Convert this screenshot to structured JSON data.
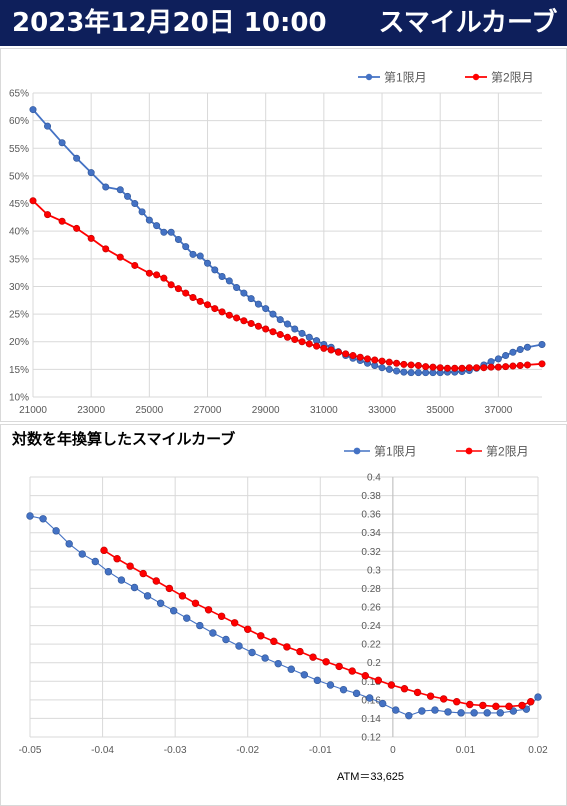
{
  "header": {
    "title": "2023年12月20日 10:00　　スマイルカーブ"
  },
  "chart_data": [
    {
      "type": "line",
      "title": "",
      "xlabel": "",
      "ylabel": "",
      "xlim": [
        21000,
        38500
      ],
      "ylim": [
        10,
        65
      ],
      "x_ticks": [
        "21000",
        "23000",
        "25000",
        "27000",
        "29000",
        "31000",
        "33000",
        "35000",
        "37000"
      ],
      "y_ticks": [
        "10%",
        "15%",
        "20%",
        "25%",
        "30%",
        "35%",
        "40%",
        "45%",
        "50%",
        "55%",
        "60%",
        "65%"
      ],
      "grid": true,
      "legend": "top-right",
      "series": [
        {
          "name": "第1限月",
          "color": "#4472c4",
          "x": [
            21000,
            21500,
            22000,
            22500,
            23000,
            23500,
            24000,
            24250,
            24500,
            24750,
            25000,
            25250,
            25500,
            25750,
            26000,
            26250,
            26500,
            26750,
            27000,
            27250,
            27500,
            27750,
            28000,
            28250,
            28500,
            28750,
            29000,
            29250,
            29500,
            29750,
            30000,
            30250,
            30500,
            30750,
            31000,
            31250,
            31500,
            31750,
            32000,
            32250,
            32500,
            32750,
            33000,
            33250,
            33500,
            33750,
            34000,
            34250,
            34500,
            34750,
            35000,
            35250,
            35500,
            35750,
            36000,
            36250,
            36500,
            36750,
            37000,
            37250,
            37500,
            37750,
            38000,
            38500
          ],
          "y": [
            62.0,
            59.0,
            56.0,
            53.2,
            50.6,
            48.0,
            47.5,
            46.3,
            45.0,
            43.5,
            42.0,
            41.0,
            39.8,
            39.8,
            38.5,
            37.2,
            35.8,
            35.5,
            34.2,
            33.0,
            31.8,
            31.0,
            29.8,
            28.8,
            27.8,
            26.8,
            26.0,
            25.0,
            24.0,
            23.2,
            22.3,
            21.5,
            20.8,
            20.2,
            19.5,
            19.0,
            18.2,
            17.5,
            17.0,
            16.6,
            16.1,
            15.7,
            15.3,
            15.0,
            14.7,
            14.5,
            14.4,
            14.4,
            14.4,
            14.4,
            14.4,
            14.5,
            14.5,
            14.6,
            14.8,
            15.2,
            15.8,
            16.4,
            16.9,
            17.5,
            18.1,
            18.6,
            19.0,
            19.5
          ]
        },
        {
          "name": "第2限月",
          "color": "#ff0000",
          "x": [
            21000,
            21500,
            22000,
            22500,
            23000,
            23500,
            24000,
            24500,
            25000,
            25250,
            25500,
            25750,
            26000,
            26250,
            26500,
            26750,
            27000,
            27250,
            27500,
            27750,
            28000,
            28250,
            28500,
            28750,
            29000,
            29250,
            29500,
            29750,
            30000,
            30250,
            30500,
            30750,
            31000,
            31250,
            31500,
            31750,
            32000,
            32250,
            32500,
            32750,
            33000,
            33250,
            33500,
            33750,
            34000,
            34250,
            34500,
            34750,
            35000,
            35250,
            35500,
            35750,
            36000,
            36250,
            36500,
            36750,
            37000,
            37250,
            37500,
            37750,
            38000,
            38500
          ],
          "y": [
            45.5,
            43.0,
            41.8,
            40.5,
            38.7,
            36.8,
            35.3,
            33.8,
            32.4,
            32.1,
            31.5,
            30.3,
            29.6,
            28.8,
            28.0,
            27.3,
            26.7,
            26.0,
            25.4,
            24.8,
            24.3,
            23.8,
            23.3,
            22.8,
            22.3,
            21.8,
            21.3,
            20.8,
            20.4,
            20.0,
            19.6,
            19.2,
            18.8,
            18.5,
            18.1,
            17.8,
            17.5,
            17.2,
            16.9,
            16.7,
            16.5,
            16.3,
            16.1,
            15.9,
            15.8,
            15.7,
            15.5,
            15.4,
            15.3,
            15.2,
            15.2,
            15.2,
            15.3,
            15.3,
            15.3,
            15.4,
            15.4,
            15.5,
            15.6,
            15.7,
            15.8,
            16.0
          ]
        }
      ]
    },
    {
      "type": "line",
      "title": "対数を年換算したスマイルカーブ",
      "xlabel": "",
      "ylabel": "",
      "xlim": [
        -0.05,
        0.02
      ],
      "ylim": [
        0.12,
        0.4
      ],
      "x_ticks": [
        "-0.05",
        "-0.04",
        "-0.03",
        "-0.02",
        "-0.01",
        "0",
        "0.01",
        "0.02"
      ],
      "y_ticks": [
        "0.12",
        "0.14",
        "0.16",
        "0.18",
        "0.2",
        "0.22",
        "0.24",
        "0.26",
        "0.28",
        "0.3",
        "0.32",
        "0.34",
        "0.36",
        "0.38",
        "0.4"
      ],
      "grid": true,
      "legend": "top-right",
      "annotation": "ATM＝33,625",
      "series": [
        {
          "name": "第1限月",
          "color": "#4472c4",
          "x": [
            -0.05,
            -0.0482,
            -0.0464,
            -0.0446,
            -0.0428,
            -0.041,
            -0.0392,
            -0.0374,
            -0.0356,
            -0.0338,
            -0.032,
            -0.0302,
            -0.0284,
            -0.0266,
            -0.0248,
            -0.023,
            -0.0212,
            -0.0194,
            -0.0176,
            -0.0158,
            -0.014,
            -0.0122,
            -0.0104,
            -0.0086,
            -0.0068,
            -0.005,
            -0.0032,
            -0.0014,
            0.0004,
            0.0022,
            0.004,
            0.0058,
            0.0076,
            0.0094,
            0.0112,
            0.013,
            0.0148,
            0.0166,
            0.0184,
            0.02
          ],
          "y": [
            0.358,
            0.355,
            0.342,
            0.328,
            0.317,
            0.309,
            0.298,
            0.289,
            0.281,
            0.272,
            0.264,
            0.256,
            0.248,
            0.24,
            0.232,
            0.225,
            0.218,
            0.211,
            0.205,
            0.199,
            0.193,
            0.187,
            0.181,
            0.176,
            0.171,
            0.167,
            0.162,
            0.156,
            0.149,
            0.143,
            0.148,
            0.149,
            0.147,
            0.146,
            0.146,
            0.146,
            0.146,
            0.148,
            0.15,
            0.163
          ]
        },
        {
          "name": "第2限月",
          "color": "#ff0000",
          "x": [
            -0.0398,
            -0.038,
            -0.0362,
            -0.0344,
            -0.0326,
            -0.0308,
            -0.029,
            -0.0272,
            -0.0254,
            -0.0236,
            -0.0218,
            -0.02,
            -0.0182,
            -0.0164,
            -0.0146,
            -0.0128,
            -0.011,
            -0.0092,
            -0.0074,
            -0.0056,
            -0.0038,
            -0.002,
            -0.0002,
            0.0016,
            0.0034,
            0.0052,
            0.007,
            0.0088,
            0.0106,
            0.0124,
            0.0142,
            0.016,
            0.0178,
            0.019
          ],
          "y": [
            0.321,
            0.312,
            0.304,
            0.296,
            0.288,
            0.28,
            0.272,
            0.264,
            0.257,
            0.25,
            0.243,
            0.236,
            0.229,
            0.223,
            0.217,
            0.212,
            0.206,
            0.201,
            0.196,
            0.191,
            0.186,
            0.181,
            0.176,
            0.172,
            0.168,
            0.164,
            0.161,
            0.158,
            0.155,
            0.154,
            0.153,
            0.153,
            0.154,
            0.158
          ]
        }
      ]
    }
  ]
}
